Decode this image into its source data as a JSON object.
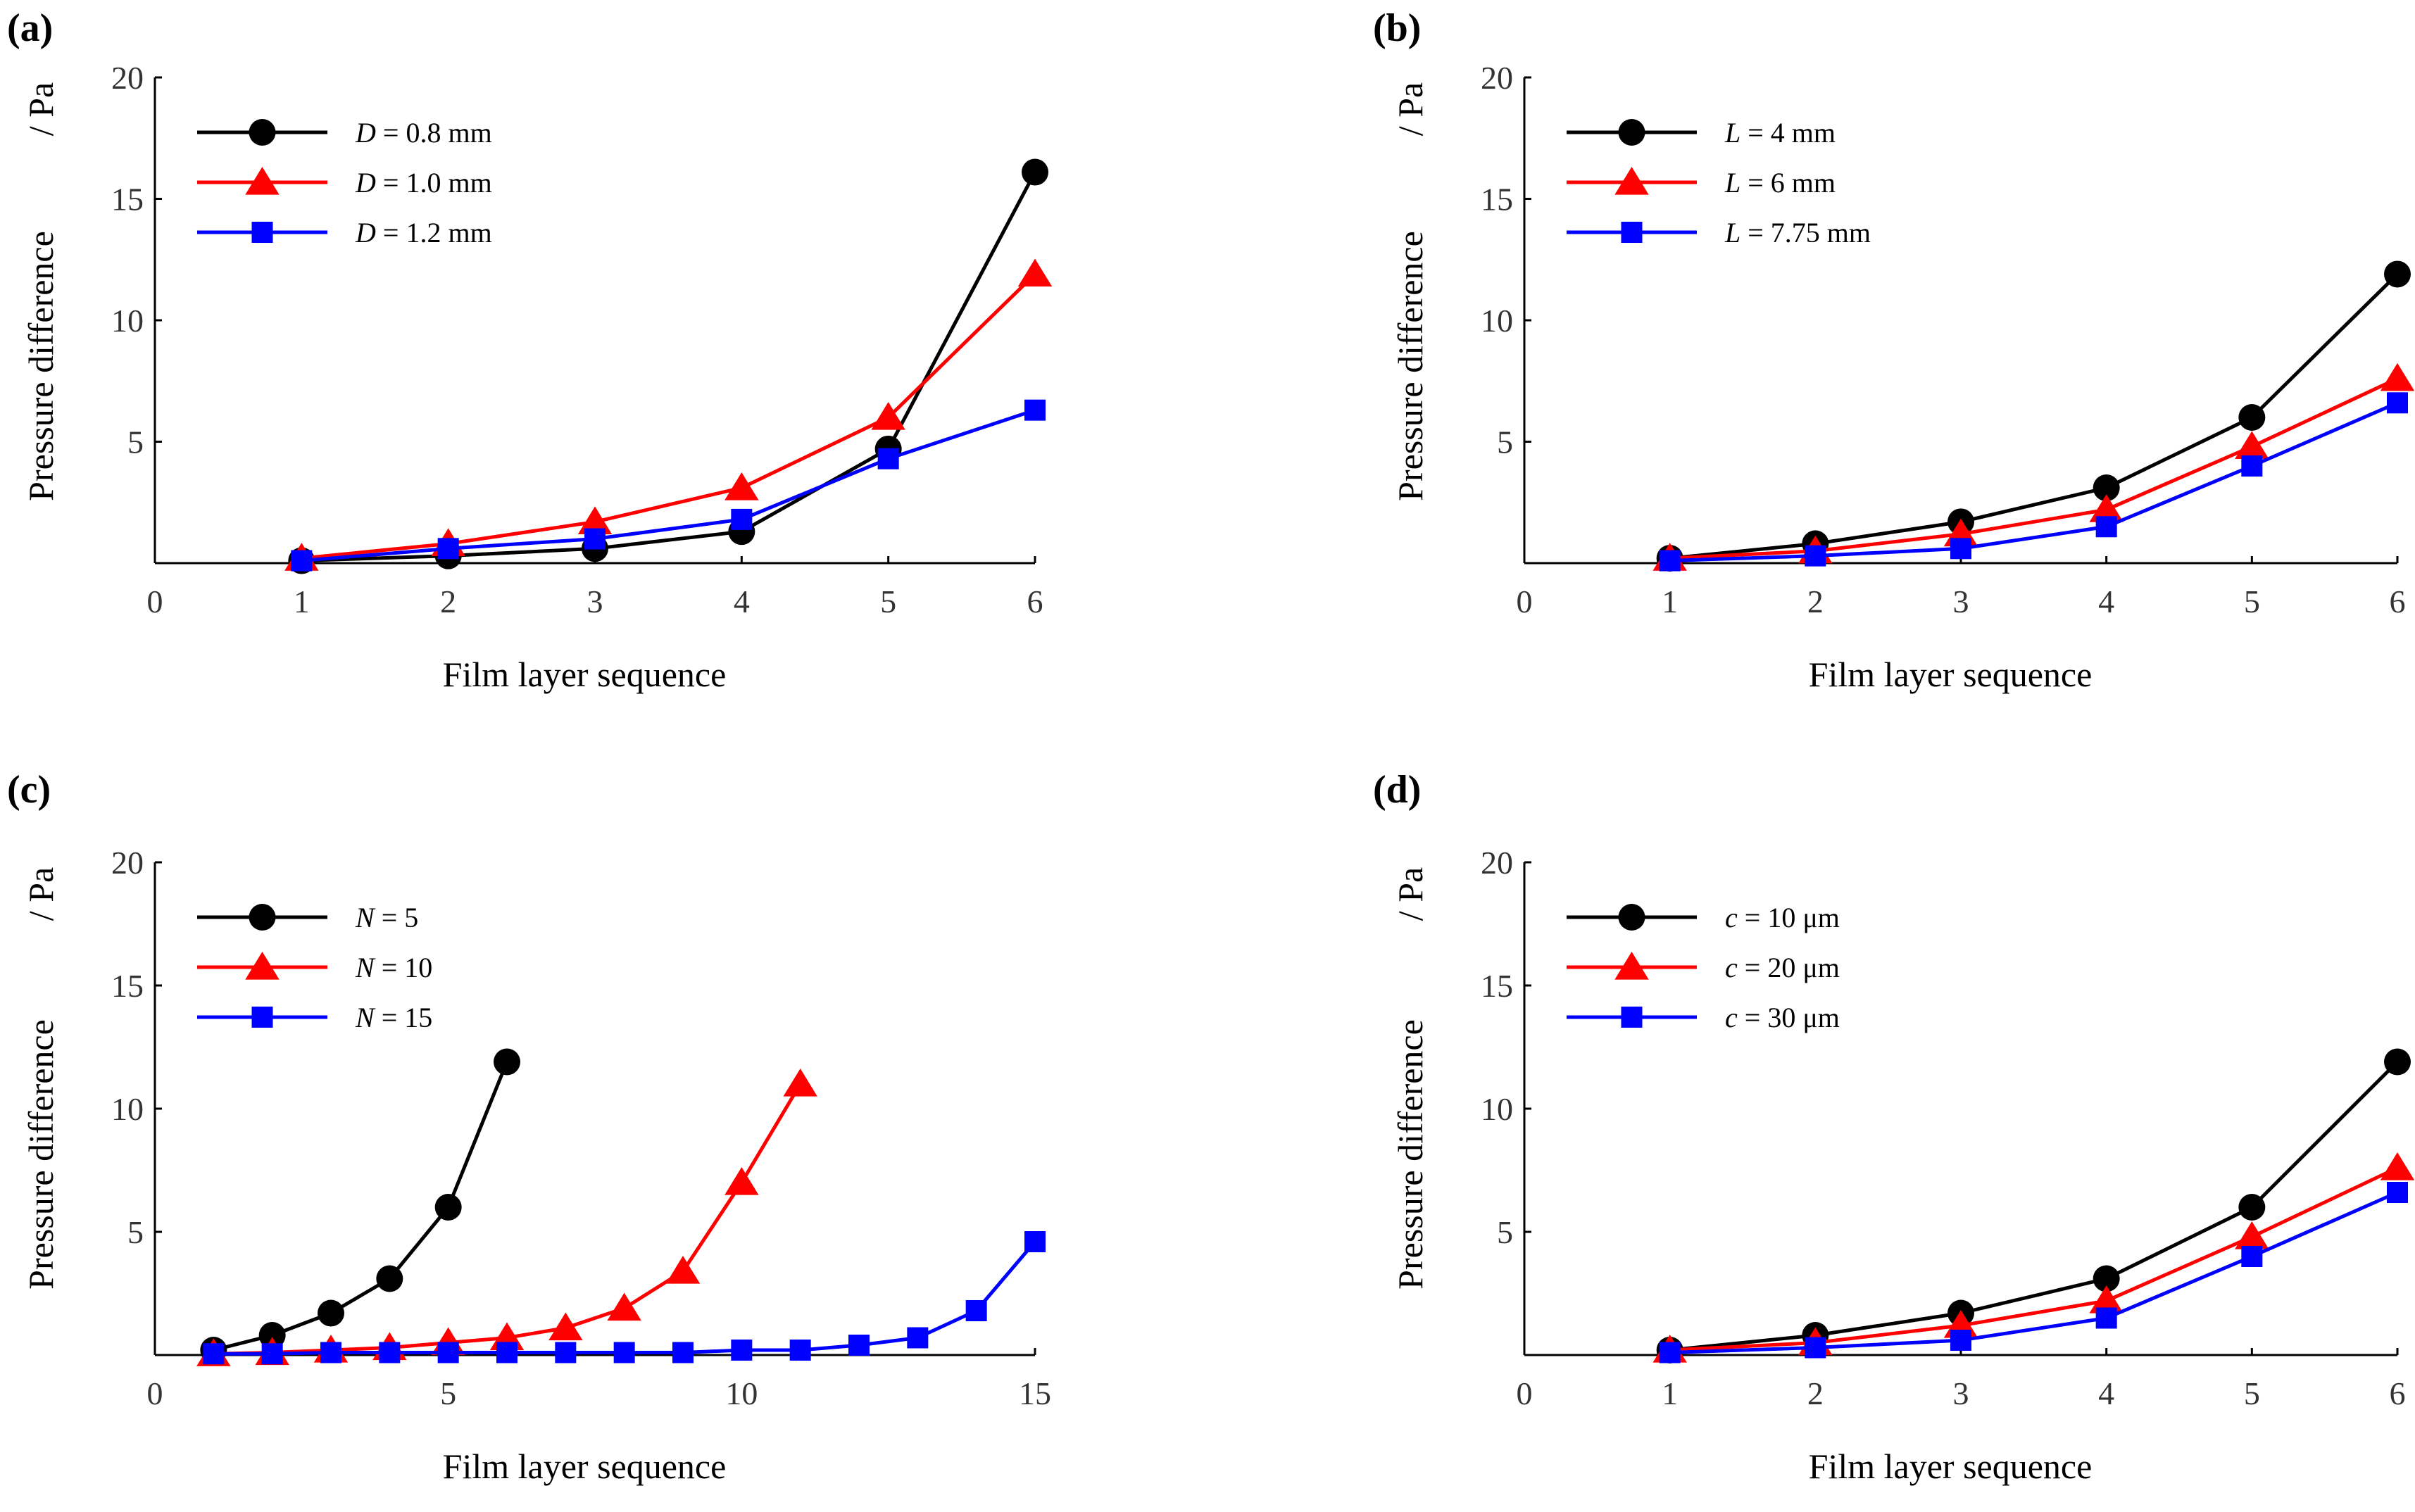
{
  "chart_data": [
    {
      "panel_label": "(a)",
      "type": "line",
      "xlabel": "Film layer sequence",
      "ylabel": "Pressure difference",
      "ylabel_unit": "/ Pa",
      "xlim": [
        0,
        6
      ],
      "ylim": [
        0,
        20
      ],
      "xticks": [
        0,
        1,
        2,
        3,
        4,
        5,
        6
      ],
      "yticks": [
        5,
        10,
        15,
        20
      ],
      "legend_location": "top-left",
      "series": [
        {
          "name": "D = 0.8 mm",
          "var": "D",
          "rest": " = 0.8 mm",
          "color": "#000000",
          "marker": "circle",
          "x": [
            1,
            2,
            3,
            4,
            5,
            6
          ],
          "y": [
            0.1,
            0.3,
            0.6,
            1.3,
            4.7,
            16.1
          ]
        },
        {
          "name": "D = 1.0 mm",
          "var": "D",
          "rest": " = 1.0 mm",
          "color": "#ff0000",
          "marker": "triangle",
          "x": [
            1,
            2,
            3,
            4,
            5,
            6
          ],
          "y": [
            0.2,
            0.8,
            1.7,
            3.1,
            6.0,
            11.9
          ]
        },
        {
          "name": "D = 1.2 mm",
          "var": "D",
          "rest": " = 1.2 mm",
          "color": "#0000ff",
          "marker": "square",
          "x": [
            1,
            2,
            3,
            4,
            5,
            6
          ],
          "y": [
            0.1,
            0.6,
            1.0,
            1.8,
            4.3,
            6.3
          ]
        }
      ]
    },
    {
      "panel_label": "(b)",
      "type": "line",
      "xlabel": "Film layer sequence",
      "ylabel": "Pressure difference",
      "ylabel_unit": "/ Pa",
      "xlim": [
        0,
        6
      ],
      "ylim": [
        0,
        20
      ],
      "xticks": [
        0,
        1,
        2,
        3,
        4,
        5,
        6
      ],
      "yticks": [
        5,
        10,
        15,
        20
      ],
      "legend_location": "top-left",
      "series": [
        {
          "name": "L = 4 mm",
          "var": "L",
          "rest": " = 4 mm",
          "color": "#000000",
          "marker": "circle",
          "x": [
            1,
            2,
            3,
            4,
            5,
            6
          ],
          "y": [
            0.2,
            0.8,
            1.7,
            3.1,
            6.0,
            11.9
          ]
        },
        {
          "name": "L = 6 mm",
          "var": "L",
          "rest": " = 6 mm",
          "color": "#ff0000",
          "marker": "triangle",
          "x": [
            1,
            2,
            3,
            4,
            5,
            6
          ],
          "y": [
            0.2,
            0.5,
            1.2,
            2.2,
            4.8,
            7.6
          ]
        },
        {
          "name": "L = 7.75 mm",
          "var": "L",
          "rest": " = 7.75 mm",
          "color": "#0000ff",
          "marker": "square",
          "x": [
            1,
            2,
            3,
            4,
            5,
            6
          ],
          "y": [
            0.1,
            0.3,
            0.6,
            1.5,
            4.0,
            6.6
          ]
        }
      ]
    },
    {
      "panel_label": "(c)",
      "type": "line",
      "xlabel": "Film layer sequence",
      "ylabel": "Pressure difference",
      "ylabel_unit": "/ Pa",
      "xlim": [
        0,
        15
      ],
      "ylim": [
        0,
        20
      ],
      "xticks": [
        0,
        5,
        10,
        15
      ],
      "yticks": [
        5,
        10,
        15,
        20
      ],
      "legend_location": "top-left",
      "series": [
        {
          "name": "N = 5",
          "var": "N",
          "rest": " = 5",
          "color": "#000000",
          "marker": "circle",
          "x": [
            1,
            2,
            3,
            4,
            5,
            6
          ],
          "y": [
            0.2,
            0.8,
            1.7,
            3.1,
            6.0,
            11.9
          ]
        },
        {
          "name": "N = 10",
          "var": "N",
          "rest": " = 10",
          "color": "#ff0000",
          "marker": "triangle",
          "x": [
            1,
            2,
            3,
            4,
            5,
            6,
            7,
            8,
            9,
            10,
            11
          ],
          "y": [
            0.05,
            0.1,
            0.2,
            0.3,
            0.5,
            0.7,
            1.1,
            1.9,
            3.4,
            7.0,
            11.0
          ]
        },
        {
          "name": "N = 15",
          "var": "N",
          "rest": " = 15",
          "color": "#0000ff",
          "marker": "square",
          "x": [
            1,
            2,
            3,
            4,
            5,
            6,
            7,
            8,
            9,
            10,
            11,
            12,
            13,
            14,
            15
          ],
          "y": [
            0.05,
            0.05,
            0.1,
            0.1,
            0.1,
            0.1,
            0.1,
            0.1,
            0.1,
            0.2,
            0.2,
            0.4,
            0.7,
            1.8,
            4.6
          ]
        }
      ]
    },
    {
      "panel_label": "(d)",
      "type": "line",
      "xlabel": "Film layer sequence",
      "ylabel": "Pressure difference",
      "ylabel_unit": "/ Pa",
      "xlim": [
        0,
        6
      ],
      "ylim": [
        0,
        20
      ],
      "xticks": [
        0,
        1,
        2,
        3,
        4,
        5,
        6
      ],
      "yticks": [
        5,
        10,
        15,
        20
      ],
      "legend_location": "top-left",
      "series": [
        {
          "name": "c = 10 μm",
          "var": "c",
          "rest": " = 10 μm",
          "color": "#000000",
          "marker": "circle",
          "x": [
            1,
            2,
            3,
            4,
            5,
            6
          ],
          "y": [
            0.2,
            0.8,
            1.7,
            3.1,
            6.0,
            11.9
          ]
        },
        {
          "name": "c = 20 μm",
          "var": "c",
          "rest": " = 20 μm",
          "color": "#ff0000",
          "marker": "triangle",
          "x": [
            1,
            2,
            3,
            4,
            5,
            6
          ],
          "y": [
            0.2,
            0.5,
            1.2,
            2.2,
            4.8,
            7.6
          ]
        },
        {
          "name": "c = 30 μm",
          "var": "c",
          "rest": " = 30 μm",
          "color": "#0000ff",
          "marker": "square",
          "x": [
            1,
            2,
            3,
            4,
            5,
            6
          ],
          "y": [
            0.1,
            0.3,
            0.6,
            1.5,
            4.0,
            6.6
          ]
        }
      ]
    }
  ]
}
